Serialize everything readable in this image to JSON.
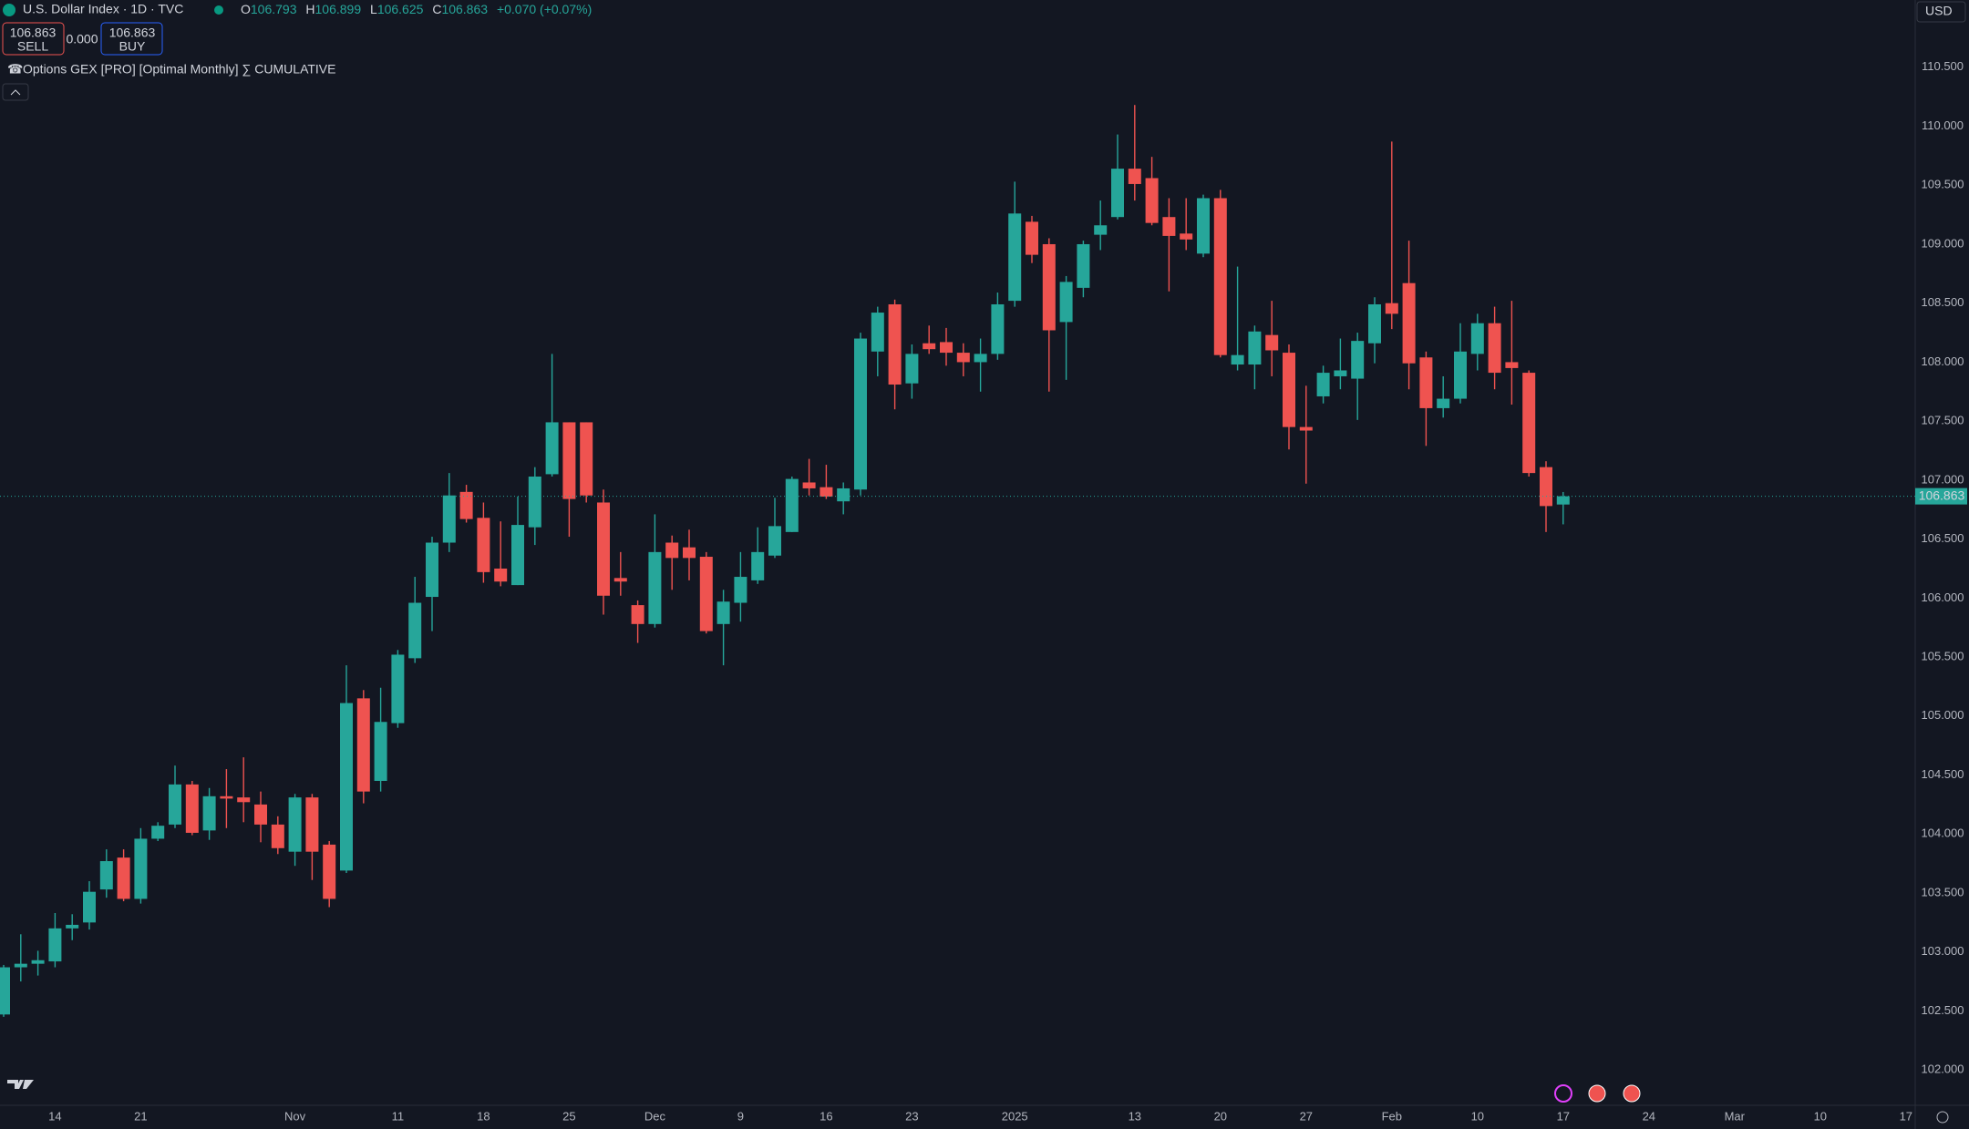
{
  "header": {
    "title": "U.S. Dollar Index · 1D · TVC",
    "open_label": "O",
    "high_label": "H",
    "low_label": "L",
    "close_label": "C",
    "change": "+0.070 (+0.07%)",
    "sell": "SELL",
    "buy": "BUY",
    "spread": "0.000",
    "indicator": "Options GEX [PRO] [Optimal Monthly] ∑ CUMULATIVE",
    "currency": "USD"
  },
  "chart_data": {
    "type": "candlestick",
    "up_color": "#26a69a",
    "down_color": "#ef5350",
    "grid": false,
    "categories": [
      null,
      null,
      null,
      "14",
      null,
      null,
      null,
      null,
      "21",
      null,
      null,
      null,
      null,
      null,
      null,
      null,
      null,
      "Nov",
      null,
      null,
      null,
      null,
      null,
      "11",
      null,
      null,
      null,
      null,
      "18",
      null,
      null,
      null,
      null,
      "25",
      null,
      null,
      null,
      null,
      "Dec",
      null,
      null,
      null,
      null,
      "9",
      null,
      null,
      null,
      null,
      "16",
      null,
      null,
      null,
      null,
      "23",
      null,
      null,
      null,
      null,
      null,
      "2025",
      null,
      null,
      null,
      null,
      null,
      null,
      "13",
      null,
      null,
      null,
      null,
      "20",
      null,
      null,
      null,
      null,
      "27",
      null,
      null,
      null,
      null,
      "Feb",
      null,
      null,
      null,
      null,
      "10",
      null,
      null,
      null,
      null,
      "17",
      null,
      null,
      null,
      null,
      "24",
      null,
      null,
      null,
      null,
      "Mar",
      null,
      null,
      null,
      null,
      "10",
      null,
      null,
      null,
      null,
      "17"
    ],
    "open": [
      102.47,
      102.87,
      102.9,
      102.92,
      103.2,
      103.25,
      103.53,
      103.8,
      103.45,
      103.96,
      104.08,
      104.42,
      104.03,
      104.32,
      104.31,
      104.25,
      104.08,
      103.85,
      104.31,
      103.91,
      103.69,
      105.15,
      104.45,
      104.94,
      105.49,
      106.01,
      106.47,
      106.9,
      106.68,
      106.25,
      106.11,
      106.6,
      107.05,
      107.49,
      107.49,
      106.81,
      106.17,
      105.94,
      105.78,
      106.47,
      106.43,
      106.35,
      105.78,
      105.96,
      106.15,
      106.36,
      106.56,
      106.98,
      106.94,
      106.82,
      106.92,
      108.09,
      108.49,
      107.82,
      108.16,
      108.17,
      108.08,
      108.0,
      108.07,
      108.52,
      109.19,
      109.0,
      108.34,
      108.63,
      109.08,
      109.23,
      109.64,
      109.56,
      109.23,
      109.09,
      108.92,
      109.39,
      107.98,
      107.98,
      108.23,
      108.08,
      107.45,
      107.71,
      107.88,
      107.86,
      108.16,
      108.5,
      108.67,
      108.04,
      107.61,
      107.69,
      108.07,
      108.33,
      108.0,
      107.91,
      107.11,
      106.793,
      null,
      null,
      null,
      null,
      null,
      null,
      null,
      null,
      null,
      null,
      null,
      null,
      null,
      null,
      null,
      null,
      null,
      null,
      null,
      null
    ],
    "high": [
      102.89,
      103.15,
      103.01,
      103.33,
      103.32,
      103.6,
      103.87,
      103.87,
      104.05,
      104.1,
      104.58,
      104.45,
      104.39,
      104.55,
      104.65,
      104.36,
      104.15,
      104.34,
      104.34,
      103.94,
      105.43,
      105.22,
      105.24,
      105.56,
      106.18,
      106.52,
      107.06,
      106.96,
      106.81,
      106.65,
      106.86,
      107.11,
      108.07,
      107.49,
      107.49,
      106.92,
      106.39,
      105.98,
      106.71,
      106.53,
      106.58,
      106.39,
      106.07,
      106.39,
      106.6,
      106.85,
      107.03,
      107.18,
      107.13,
      106.98,
      108.25,
      108.47,
      108.53,
      108.15,
      108.31,
      108.29,
      108.16,
      108.2,
      108.59,
      109.53,
      109.24,
      109.05,
      108.73,
      109.03,
      109.37,
      109.93,
      110.18,
      109.74,
      109.39,
      109.39,
      109.42,
      109.46,
      108.81,
      108.31,
      108.52,
      108.15,
      107.8,
      107.97,
      108.2,
      108.25,
      108.55,
      109.87,
      109.03,
      108.09,
      107.88,
      108.33,
      108.41,
      108.47,
      108.52,
      107.93,
      107.16,
      106.899,
      null,
      null,
      null,
      null,
      null,
      null,
      null,
      null,
      null,
      null,
      null,
      null,
      null,
      null,
      null,
      null,
      null,
      null,
      null,
      null
    ],
    "low": [
      102.45,
      102.75,
      102.8,
      102.87,
      103.1,
      103.19,
      103.46,
      103.43,
      103.41,
      103.94,
      104.05,
      103.99,
      103.95,
      104.05,
      104.1,
      103.93,
      103.83,
      103.73,
      103.61,
      103.38,
      103.67,
      104.26,
      104.36,
      104.9,
      105.45,
      105.72,
      106.39,
      106.64,
      106.13,
      106.1,
      106.11,
      106.45,
      107.03,
      106.52,
      106.81,
      105.86,
      106.02,
      105.62,
      105.75,
      106.07,
      106.15,
      105.7,
      105.43,
      105.8,
      106.12,
      106.34,
      106.56,
      106.87,
      106.84,
      106.71,
      106.87,
      107.88,
      107.6,
      107.69,
      108.07,
      107.97,
      107.88,
      107.75,
      108.02,
      108.47,
      108.84,
      107.75,
      107.85,
      108.55,
      108.95,
      109.21,
      109.37,
      109.16,
      108.6,
      108.95,
      108.89,
      108.04,
      107.93,
      107.77,
      107.88,
      107.26,
      106.97,
      107.65,
      107.77,
      107.51,
      107.99,
      108.28,
      107.77,
      107.29,
      107.53,
      107.65,
      107.93,
      107.77,
      107.64,
      107.03,
      106.56,
      106.625,
      null,
      null,
      null,
      null,
      null,
      null,
      null,
      null,
      null,
      null,
      null,
      null,
      null,
      null,
      null,
      null,
      null,
      null,
      null,
      null
    ],
    "close": [
      102.87,
      102.9,
      102.93,
      103.2,
      103.23,
      103.51,
      103.77,
      103.45,
      103.96,
      104.07,
      104.42,
      104.01,
      104.32,
      104.3,
      104.27,
      104.08,
      103.88,
      104.31,
      103.85,
      103.45,
      105.11,
      104.36,
      104.95,
      105.52,
      105.96,
      106.47,
      106.87,
      106.67,
      106.22,
      106.14,
      106.62,
      107.03,
      107.49,
      106.84,
      106.87,
      106.02,
      106.14,
      105.78,
      106.39,
      106.34,
      106.34,
      105.72,
      105.97,
      106.18,
      106.39,
      106.61,
      107.01,
      106.93,
      106.86,
      106.93,
      108.2,
      108.42,
      107.81,
      108.07,
      108.11,
      108.08,
      108.0,
      108.07,
      108.49,
      109.26,
      108.91,
      108.27,
      108.68,
      109.0,
      109.16,
      109.64,
      109.51,
      109.18,
      109.07,
      109.04,
      109.39,
      108.06,
      108.06,
      108.26,
      108.1,
      107.45,
      107.42,
      107.91,
      107.93,
      108.18,
      108.49,
      108.41,
      107.99,
      107.61,
      107.69,
      108.09,
      108.33,
      107.91,
      107.95,
      107.06,
      106.78,
      106.863,
      null,
      null,
      null,
      null,
      null,
      null,
      null,
      null,
      null,
      null,
      null,
      null,
      null,
      null,
      null,
      null,
      null,
      null,
      null,
      null
    ],
    "ylim": [
      101.7,
      111.07
    ],
    "yticks": [
      {
        "value": 102,
        "label": "102.000"
      },
      {
        "value": 102.5,
        "label": "102.500"
      },
      {
        "value": 103,
        "label": "103.000"
      },
      {
        "value": 103.5,
        "label": "103.500"
      },
      {
        "value": 104,
        "label": "104.000"
      },
      {
        "value": 104.5,
        "label": "104.500"
      },
      {
        "value": 105,
        "label": "105.000"
      },
      {
        "value": 105.5,
        "label": "105.500"
      },
      {
        "value": 106,
        "label": "106.000"
      },
      {
        "value": 106.5,
        "label": "106.500"
      },
      {
        "value": 107,
        "label": "107.000"
      },
      {
        "value": 107.5,
        "label": "107.500"
      },
      {
        "value": 108,
        "label": "108.000"
      },
      {
        "value": 108.5,
        "label": "108.500"
      },
      {
        "value": 109,
        "label": "109.000"
      },
      {
        "value": 109.5,
        "label": "109.500"
      },
      {
        "value": 110,
        "label": "110.000"
      },
      {
        "value": 110.5,
        "label": "110.500"
      }
    ]
  }
}
